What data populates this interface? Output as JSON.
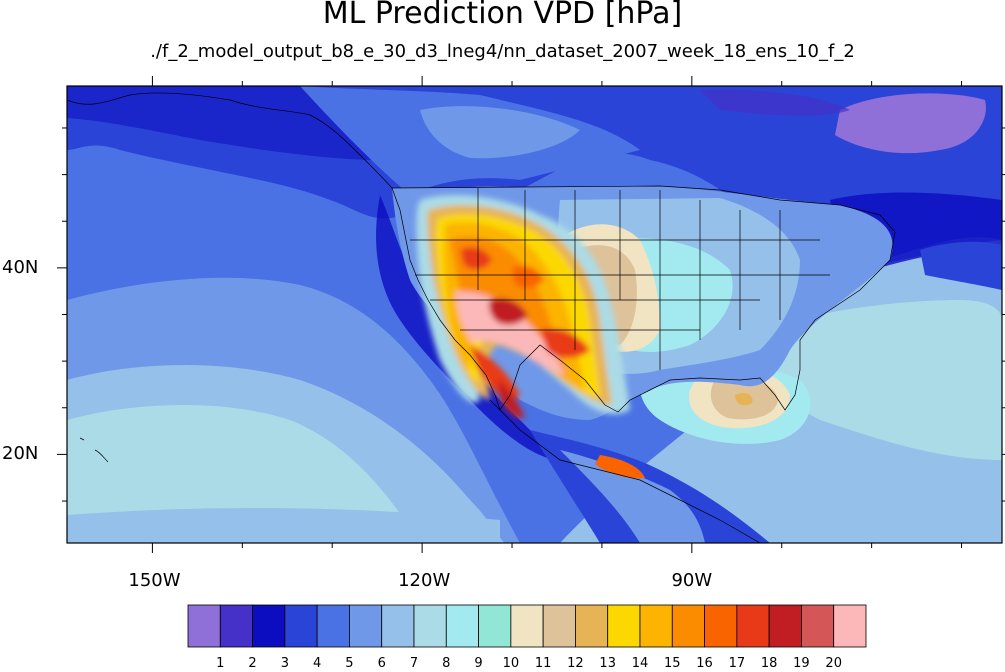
{
  "title": "ML Prediction VPD [hPa]",
  "subtitle": "./f_2_model_output_b8_e_30_d3_lneg4/nn_dataset_2007_week_18_ens_10_f_2",
  "lon_axis": {
    "ticks": [
      {
        "label": "150W",
        "lon": -150
      },
      {
        "label": "120W",
        "lon": -120
      },
      {
        "label": "90W",
        "lon": -90
      }
    ],
    "range": [
      -159.5,
      -55.5
    ]
  },
  "lat_axis": {
    "ticks": [
      {
        "label": "20N",
        "lat": 20
      },
      {
        "label": "40N",
        "lat": 40
      }
    ],
    "range": [
      10.5,
      59.5
    ]
  },
  "colorbar": {
    "labels": [
      "1",
      "2",
      "3",
      "4",
      "5",
      "6",
      "7",
      "8",
      "9",
      "10",
      "11",
      "12",
      "13",
      "14",
      "15",
      "16",
      "17",
      "18",
      "19",
      "20"
    ],
    "colors": [
      "#8f70d8",
      "#4530c8",
      "#0c0cc0",
      "#2a44d8",
      "#4a72e4",
      "#7098e8",
      "#94c0ea",
      "#abdbe6",
      "#a2eaf0",
      "#92e6d6",
      "#f0e4c2",
      "#dec29a",
      "#e6b456",
      "#fcd800",
      "#fcb400",
      "#fb8c00",
      "#f96400",
      "#e83a18",
      "#c01e22",
      "#d45656",
      "#fcb8b8"
    ]
  },
  "legend_note": ""
}
